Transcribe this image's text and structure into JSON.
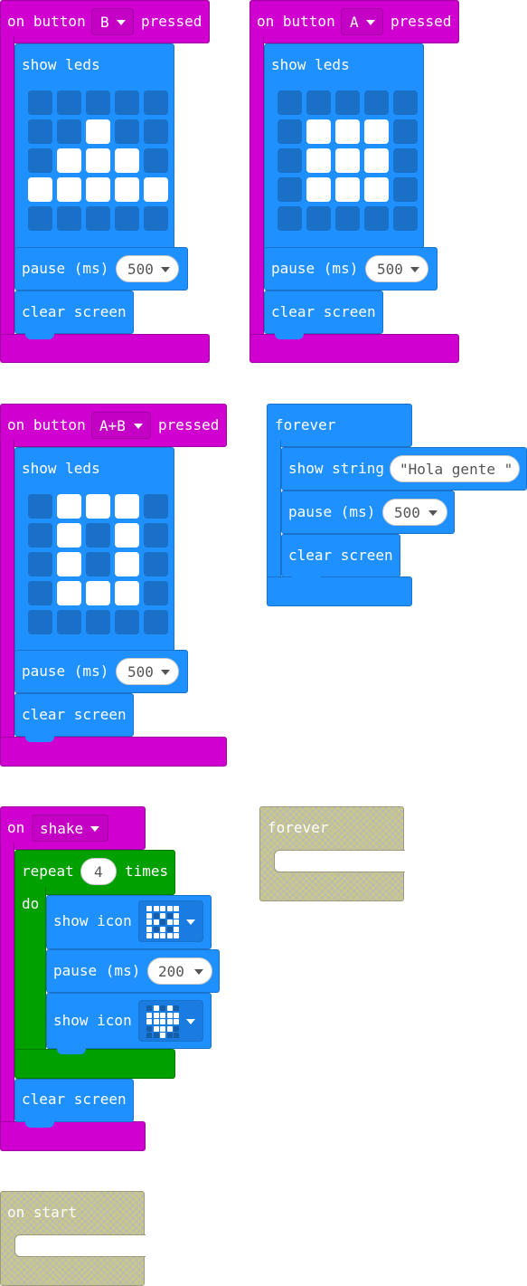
{
  "blocks": {
    "btn_b": {
      "prefix": "on button",
      "button": "B",
      "suffix": "pressed",
      "show_leds": "show leds",
      "leds": [
        [
          0,
          0,
          0,
          0,
          0
        ],
        [
          0,
          0,
          1,
          0,
          0
        ],
        [
          0,
          1,
          1,
          1,
          0
        ],
        [
          1,
          1,
          1,
          1,
          1
        ],
        [
          0,
          0,
          0,
          0,
          0
        ]
      ],
      "pause": "pause (ms)",
      "pause_value": "500",
      "clear": "clear screen"
    },
    "btn_a": {
      "prefix": "on button",
      "button": "A",
      "suffix": "pressed",
      "show_leds": "show leds",
      "leds": [
        [
          0,
          0,
          0,
          0,
          0
        ],
        [
          0,
          1,
          1,
          1,
          0
        ],
        [
          0,
          1,
          1,
          1,
          0
        ],
        [
          0,
          1,
          1,
          1,
          0
        ],
        [
          0,
          0,
          0,
          0,
          0
        ]
      ],
      "pause": "pause (ms)",
      "pause_value": "500",
      "clear": "clear screen"
    },
    "btn_ab": {
      "prefix": "on button",
      "button": "A+B",
      "suffix": "pressed",
      "show_leds": "show leds",
      "leds": [
        [
          0,
          1,
          1,
          1,
          0
        ],
        [
          0,
          1,
          0,
          1,
          0
        ],
        [
          0,
          1,
          0,
          1,
          0
        ],
        [
          0,
          1,
          1,
          1,
          0
        ],
        [
          0,
          0,
          0,
          0,
          0
        ]
      ],
      "pause": "pause (ms)",
      "pause_value": "500",
      "clear": "clear screen"
    },
    "forever1": {
      "label": "forever",
      "show_string": "show string",
      "string_value": "\"Hola gente \"",
      "pause": "pause (ms)",
      "pause_value": "500",
      "clear": "clear screen"
    },
    "shake": {
      "prefix": "on",
      "gesture": "shake",
      "repeat": "repeat",
      "repeat_count": "4",
      "times": "times",
      "do": "do",
      "show_icon_1": "show icon",
      "icon_1": [
        [
          1,
          1,
          1,
          1,
          1
        ],
        [
          1,
          0,
          1,
          0,
          1
        ],
        [
          1,
          1,
          0,
          1,
          1
        ],
        [
          1,
          0,
          1,
          0,
          1
        ],
        [
          1,
          1,
          1,
          1,
          1
        ]
      ],
      "pause": "pause (ms)",
      "pause_value": "200",
      "show_icon_2": "show icon",
      "icon_2": [
        [
          0,
          1,
          0,
          1,
          0
        ],
        [
          1,
          1,
          1,
          1,
          1
        ],
        [
          1,
          1,
          1,
          1,
          1
        ],
        [
          0,
          1,
          1,
          1,
          0
        ],
        [
          0,
          0,
          1,
          0,
          0
        ]
      ],
      "clear": "clear screen"
    },
    "forever2": {
      "label": "forever"
    },
    "on_start": {
      "label": "on start"
    }
  },
  "colors": {
    "event": "#d000d0",
    "basic": "#1e90ff",
    "loop": "#00a000",
    "disabled": "#c9c889",
    "led_off": "#1a6fc6",
    "led_on": "#ffffff"
  },
  "icons": [
    "dropdown-caret-icon"
  ]
}
